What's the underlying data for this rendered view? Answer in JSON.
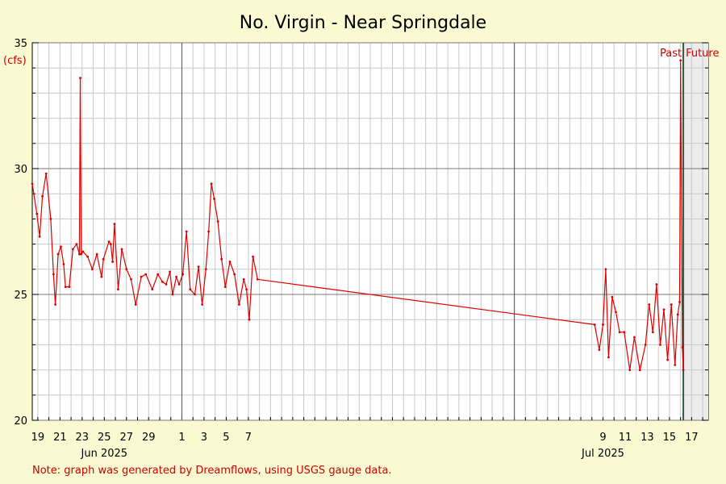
{
  "chart_data": {
    "type": "line",
    "title": "No. Virgin - Near Springdale",
    "y_unit": "(cfs)",
    "ylim": [
      20,
      35
    ],
    "y_ticks": [
      20,
      25,
      30,
      35
    ],
    "xlim": [
      "2025-05-18T12:00",
      "2025-07-18T12:00"
    ],
    "x_day_ticks": [
      "19",
      "21",
      "23",
      "25",
      "27",
      "29",
      "1",
      "3",
      "5",
      "7",
      "9",
      "11",
      "13",
      "15",
      "17"
    ],
    "x_day_tick_dates": [
      "2025-05-19",
      "2025-05-21",
      "2025-05-23",
      "2025-05-25",
      "2025-05-27",
      "2025-05-29",
      "2025-06-01",
      "2025-06-03",
      "2025-06-05",
      "2025-06-07",
      "2025-07-09",
      "2025-07-11",
      "2025-07-13",
      "2025-07-15",
      "2025-07-17"
    ],
    "x_month_labels": [
      "Jun 2025",
      "Jul 2025"
    ],
    "x_month_label_dates": [
      "2025-05-25",
      "2025-07-09"
    ],
    "past_label": "Past",
    "future_label": "Future",
    "now": "2025-07-16T06:00",
    "grid": true,
    "series": [
      {
        "color": "#dd0000",
        "x": [
          "2025-05-18T12:00",
          "2025-05-18T22:00",
          "2025-05-19T04:00",
          "2025-05-19T10:00",
          "2025-05-19T18:00",
          "2025-05-20T04:00",
          "2025-05-20T10:00",
          "2025-05-20T14:00",
          "2025-05-20T20:00",
          "2025-05-21T02:00",
          "2025-05-21T08:00",
          "2025-05-21T12:00",
          "2025-05-21T20:00",
          "2025-05-22T04:00",
          "2025-05-22T12:00",
          "2025-05-22T18:00",
          "2025-05-22T20:00",
          "2025-05-22T22:00",
          "2025-05-23T02:00",
          "2025-05-23T12:00",
          "2025-05-23T22:00",
          "2025-05-24T08:00",
          "2025-05-24T18:00",
          "2025-05-24T22:00",
          "2025-05-25T10:00",
          "2025-05-25T14:00",
          "2025-05-25T18:00",
          "2025-05-25T22:00",
          "2025-05-26T06:00",
          "2025-05-26T14:00",
          "2025-05-27T00:00",
          "2025-05-27T10:00",
          "2025-05-27T20:00",
          "2025-05-28T08:00",
          "2025-05-28T18:00",
          "2025-05-29T08:00",
          "2025-05-29T20:00",
          "2025-05-30T06:00",
          "2025-05-30T14:00",
          "2025-05-30T22:00",
          "2025-05-31T04:00",
          "2025-05-31T12:00",
          "2025-05-31T18:00",
          "2025-06-01T02:00",
          "2025-06-01T10:00",
          "2025-06-01T18:00",
          "2025-06-02T04:00",
          "2025-06-02T12:00",
          "2025-06-02T20:00",
          "2025-06-03T04:00",
          "2025-06-03T10:00",
          "2025-06-03T16:00",
          "2025-06-03T22:00",
          "2025-06-04T06:00",
          "2025-06-04T14:00",
          "2025-06-04T22:00",
          "2025-06-05T08:00",
          "2025-06-05T18:00",
          "2025-06-06T04:00",
          "2025-06-06T14:00",
          "2025-06-06T20:00",
          "2025-06-07T02:00",
          "2025-06-07T10:00",
          "2025-06-07T20:00",
          "2025-07-08T06:00",
          "2025-07-08T16:00",
          "2025-07-09T00:00",
          "2025-07-09T06:00",
          "2025-07-09T12:00",
          "2025-07-09T20:00",
          "2025-07-10T04:00",
          "2025-07-10T12:00",
          "2025-07-10T22:00",
          "2025-07-11T10:00",
          "2025-07-11T20:00",
          "2025-07-12T08:00",
          "2025-07-12T20:00",
          "2025-07-13T04:00",
          "2025-07-13T12:00",
          "2025-07-13T20:00",
          "2025-07-14T04:00",
          "2025-07-14T12:00",
          "2025-07-14T20:00",
          "2025-07-15T04:00",
          "2025-07-15T12:00",
          "2025-07-15T18:00",
          "2025-07-15T22:00",
          "2025-07-16T00:00",
          "2025-07-16T04:00",
          "2025-07-16T06:00"
        ],
        "y": [
          29.4,
          28.2,
          27.3,
          28.9,
          29.8,
          28.0,
          25.8,
          24.6,
          26.6,
          26.9,
          26.2,
          25.3,
          25.3,
          26.8,
          27.0,
          26.6,
          33.6,
          26.6,
          26.7,
          26.5,
          26.0,
          26.6,
          25.7,
          26.4,
          27.1,
          27.0,
          26.3,
          27.8,
          25.2,
          26.8,
          26.0,
          25.6,
          24.6,
          25.7,
          25.8,
          25.2,
          25.8,
          25.5,
          25.4,
          25.9,
          25.0,
          25.7,
          25.4,
          25.8,
          27.5,
          25.2,
          25.0,
          26.1,
          24.6,
          26.0,
          27.5,
          29.4,
          28.8,
          27.9,
          26.4,
          25.3,
          26.3,
          25.8,
          24.6,
          25.6,
          25.2,
          24.0,
          26.5,
          25.6,
          23.8,
          22.8,
          23.8,
          26.0,
          22.5,
          24.9,
          24.3,
          23.5,
          23.5,
          22.0,
          23.3,
          22.0,
          23.0,
          24.6,
          23.5,
          25.4,
          23.0,
          24.4,
          22.4,
          24.6,
          22.2,
          24.2,
          24.7,
          34.3,
          22.9,
          22.0
        ]
      }
    ]
  },
  "note": "Note: graph was generated by Dreamflows, using USGS gauge data."
}
